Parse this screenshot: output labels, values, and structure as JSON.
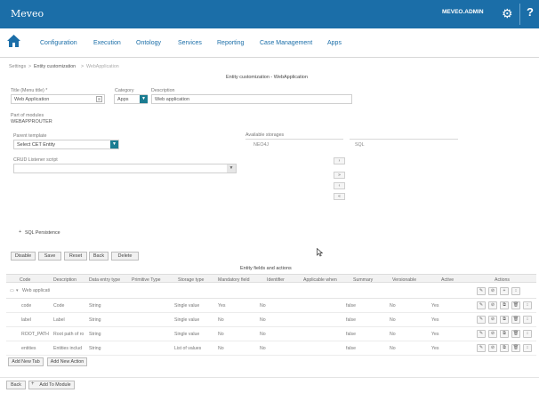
{
  "app": {
    "title": "Meveo",
    "user": "MEVEO.ADMIN",
    "help_glyph": "?"
  },
  "nav": {
    "items": [
      "Configuration",
      "Execution",
      "Ontology",
      "Services",
      "Reporting",
      "Case Management",
      "Apps"
    ]
  },
  "breadcrumb": {
    "first": "Settings",
    "second": "Entity customization",
    "third": "WebApplication"
  },
  "form": {
    "title": "Entity customization - WebApplication",
    "title_label": "Title (Menu title) *",
    "title_value": "Web Application",
    "category_label": "Category",
    "category_value": "Apps",
    "description_label": "Description",
    "description_value": "Web application",
    "part_of_modules_label": "Part of modules",
    "part_of_modules_value": "WEBAPPROUTER",
    "parent_template_label": "Parent template",
    "parent_template_value": "Select CET Entity",
    "available_storages_label": "Available storages",
    "storage_left": "NEO4J",
    "storage_right": "SQL",
    "crud_label": "CRUD Listener script",
    "sql_persistence": "SQL Persistence"
  },
  "toolbar": {
    "disable": "Disable",
    "save": "Save",
    "reset": "Reset",
    "back": "Back",
    "delete": "Delete"
  },
  "fields": {
    "title": "Entity fields and actions",
    "columns": [
      "Code",
      "Description",
      "Data entry type",
      "Primitive Type",
      "Storage type",
      "Mandatory field",
      "Identifier",
      "Applicable when",
      "Summary",
      "Versionable",
      "Active",
      "Actions"
    ],
    "group": "Web applicati",
    "rows": [
      {
        "code": "code",
        "description": "Code",
        "data_type": "String",
        "storage": "Single value",
        "mandatory": "Yes",
        "identifier": "No",
        "summary": "false",
        "versionable": "No",
        "active": "Yes"
      },
      {
        "code": "label",
        "description": "Label",
        "data_type": "String",
        "storage": "Single value",
        "mandatory": "No",
        "identifier": "No",
        "summary": "false",
        "versionable": "No",
        "active": "Yes"
      },
      {
        "code": "ROOT_PATH",
        "description": "Root path of ro",
        "data_type": "String",
        "storage": "Single value",
        "mandatory": "No",
        "identifier": "No",
        "summary": "false",
        "versionable": "No",
        "active": "Yes"
      },
      {
        "code": "entities",
        "description": "Entities includ",
        "data_type": "String",
        "storage": "List of values",
        "mandatory": "No",
        "identifier": "No",
        "summary": "false",
        "versionable": "No",
        "active": "Yes"
      }
    ],
    "add_tab": "Add New Tab",
    "add_action": "Add New Action"
  },
  "footer": {
    "back": "Back",
    "add_to_module": "Add To Module"
  },
  "colors": {
    "brand": "#1b6ea8",
    "teal": "#1b7c91"
  },
  "icons": [
    "home-icon",
    "gear-icon",
    "chevron-down-icon",
    "plus-icon",
    "arrow-right-icon",
    "arrow-left-icon",
    "cursor-icon"
  ]
}
